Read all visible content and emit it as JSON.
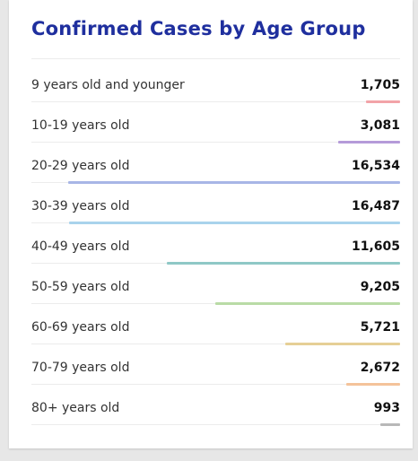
{
  "card": {
    "title": "Confirmed Cases by Age Group"
  },
  "max_value": 16534,
  "rows": [
    {
      "label": "9 years old and younger",
      "value": "1,705",
      "count": 1705,
      "color": "#f2a3a8"
    },
    {
      "label": "10-19 years old",
      "value": "3,081",
      "count": 3081,
      "color": "#b59bd9"
    },
    {
      "label": "20-29 years old",
      "value": "16,534",
      "count": 16534,
      "color": "#a8b6e6"
    },
    {
      "label": "30-39 years old",
      "value": "16,487",
      "count": 16487,
      "color": "#a9d3ec"
    },
    {
      "label": "40-49 years old",
      "value": "11,605",
      "count": 11605,
      "color": "#8fc8c6"
    },
    {
      "label": "50-59 years old",
      "value": "9,205",
      "count": 9205,
      "color": "#b9dba6"
    },
    {
      "label": "60-69 years old",
      "value": "5,721",
      "count": 5721,
      "color": "#e6cf96"
    },
    {
      "label": "70-79 years old",
      "value": "2,672",
      "count": 2672,
      "color": "#f4c39a"
    },
    {
      "label": "80+ years old",
      "value": "993",
      "count": 993,
      "color": "#b8b8b8"
    }
  ]
}
